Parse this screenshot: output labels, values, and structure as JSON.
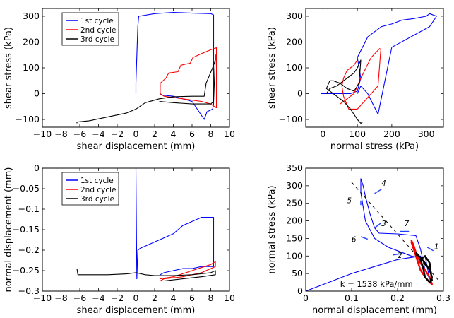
{
  "chart_data": [
    {
      "type": "line",
      "xlabel": "shear displacement (mm)",
      "ylabel": "shear stress (kPa)",
      "xlim": [
        -10,
        10
      ],
      "ylim": [
        -130,
        330
      ],
      "xticks": [
        -10,
        -8,
        -6,
        -4,
        -2,
        0,
        2,
        4,
        6,
        8,
        10
      ],
      "xtick_labels": [
        "−10",
        "−8",
        "−6",
        "−4",
        "−2",
        "0",
        "2",
        "4",
        "6",
        "8",
        "10"
      ],
      "yticks": [
        -100,
        0,
        100,
        200,
        300
      ],
      "ytick_labels": [
        "−100",
        "0",
        "100",
        "200",
        "300"
      ],
      "legend": "top-left",
      "series": [
        {
          "name": "1st cycle",
          "color": "#0000ff",
          "x": [
            0,
            0,
            0.2,
            0.3,
            2,
            4,
            6,
            8,
            8.3,
            8.3,
            8.2,
            7.6,
            7.3,
            6,
            4,
            2.6,
            2.6
          ],
          "y": [
            0,
            40,
            260,
            300,
            310,
            315,
            312,
            310,
            305,
            -40,
            -60,
            -70,
            -100,
            -30,
            -10,
            -5,
            0
          ]
        },
        {
          "name": "2nd cycle",
          "color": "#ff0000",
          "x": [
            2.6,
            2.6,
            3.2,
            3.5,
            4.5,
            4.8,
            5.8,
            6.1,
            7,
            8,
            8.6,
            8.6,
            8.2,
            8,
            7,
            6,
            5,
            4,
            3,
            2.6
          ],
          "y": [
            0,
            40,
            60,
            80,
            85,
            110,
            118,
            140,
            155,
            170,
            178,
            -55,
            -45,
            -40,
            -30,
            -25,
            -20,
            -15,
            -10,
            0
          ]
        },
        {
          "name": "3rd cycle",
          "color": "#000000",
          "x": [
            -6.3,
            -6.3,
            -5,
            -3,
            -1,
            0,
            1,
            2.5,
            4,
            6,
            7.3,
            7.5,
            8.2,
            8.5,
            8.5,
            8.3,
            8,
            6,
            4,
            2.5
          ],
          "y": [
            -115,
            -110,
            -105,
            -90,
            -75,
            -60,
            -35,
            -20,
            -12,
            -10,
            -10,
            40,
            100,
            130,
            150,
            -30,
            -40,
            -40,
            -35,
            -30
          ]
        }
      ]
    },
    {
      "type": "line",
      "xlabel": "normal stress (kPa)",
      "ylabel": "shear stress (kPa)",
      "xlim": [
        -50,
        350
      ],
      "ylim": [
        -130,
        330
      ],
      "xticks": [
        0,
        100,
        200,
        300
      ],
      "xtick_labels": [
        "0",
        "100",
        "200",
        "300"
      ],
      "yticks": [
        -100,
        0,
        100,
        200,
        300
      ],
      "ytick_labels": [
        "−100",
        "0",
        "100",
        "200",
        "300"
      ],
      "series": [
        {
          "name": "1st cycle",
          "color": "#0000ff",
          "x": [
            -5,
            40,
            80,
            100,
            110,
            100,
            130,
            170,
            200,
            230,
            260,
            300,
            310,
            330,
            320,
            310,
            200,
            160,
            130,
            110,
            100
          ],
          "y": [
            0,
            0,
            0,
            10,
            60,
            140,
            220,
            260,
            270,
            285,
            290,
            300,
            310,
            300,
            280,
            260,
            180,
            -80,
            0,
            30,
            0
          ]
        },
        {
          "name": "2nd cycle",
          "color": "#ff0000",
          "x": [
            50,
            70,
            90,
            110,
            140,
            165,
            168,
            160,
            130,
            100,
            75,
            60,
            55,
            60,
            70,
            80,
            90,
            100
          ],
          "y": [
            -40,
            -20,
            0,
            60,
            140,
            175,
            170,
            30,
            -15,
            -60,
            -60,
            -10,
            30,
            60,
            90,
            100,
            110,
            130
          ]
        },
        {
          "name": "3rd cycle",
          "color": "#000000",
          "x": [
            10,
            20,
            40,
            60,
            80,
            90,
            100,
            110,
            105,
            90,
            70,
            50,
            30,
            20,
            10,
            60,
            80,
            90,
            100,
            110,
            115
          ],
          "y": [
            0,
            20,
            30,
            50,
            70,
            80,
            100,
            130,
            40,
            10,
            20,
            40,
            50,
            50,
            20,
            -30,
            -60,
            -80,
            -100,
            -115,
            -110
          ]
        }
      ]
    },
    {
      "type": "line",
      "xlabel": "shear displacement (mm)",
      "ylabel": "normal displacement (mm)",
      "xlim": [
        -10,
        10
      ],
      "ylim": [
        -0.3,
        0
      ],
      "xticks": [
        -10,
        -8,
        -6,
        -4,
        -2,
        0,
        2,
        4,
        6,
        8,
        10
      ],
      "xtick_labels": [
        "−10",
        "−8",
        "−6",
        "−4",
        "−2",
        "0",
        "2",
        "4",
        "6",
        "8",
        "10"
      ],
      "yticks": [
        -0.3,
        -0.25,
        -0.2,
        -0.15,
        -0.1,
        -0.05,
        0
      ],
      "ytick_labels": [
        "−0.3",
        "−0.25",
        "−0.2",
        "−0.15",
        "−0.1",
        "−0.05",
        "0"
      ],
      "legend": "top-left",
      "series": [
        {
          "name": "1st cycle",
          "color": "#0000ff",
          "x": [
            0,
            0.1,
            0.2,
            0.5,
            1,
            2,
            3,
            4,
            5,
            6,
            7,
            8,
            8.3,
            8.3,
            7,
            6,
            5,
            4,
            3,
            2.6
          ],
          "y": [
            0,
            -0.27,
            -0.2,
            -0.195,
            -0.19,
            -0.18,
            -0.17,
            -0.16,
            -0.14,
            -0.13,
            -0.12,
            -0.12,
            -0.12,
            -0.24,
            -0.24,
            -0.245,
            -0.245,
            -0.25,
            -0.255,
            -0.26
          ]
        },
        {
          "name": "2nd cycle",
          "color": "#ff0000",
          "x": [
            2.6,
            4,
            6,
            8,
            8.5,
            8.5,
            7,
            5,
            3,
            2.6
          ],
          "y": [
            -0.27,
            -0.265,
            -0.25,
            -0.235,
            -0.228,
            -0.24,
            -0.255,
            -0.265,
            -0.27,
            -0.275
          ]
        },
        {
          "name": "3rd cycle",
          "color": "#000000",
          "x": [
            -6.3,
            -6.2,
            -5,
            -3,
            -1,
            0,
            1,
            2,
            4,
            6,
            8,
            8.5,
            8.5,
            7,
            5,
            3,
            2.6
          ],
          "y": [
            -0.245,
            -0.26,
            -0.26,
            -0.26,
            -0.258,
            -0.255,
            -0.26,
            -0.262,
            -0.262,
            -0.26,
            -0.255,
            -0.25,
            -0.26,
            -0.265,
            -0.27,
            -0.275,
            -0.275
          ]
        }
      ]
    },
    {
      "type": "line",
      "xlabel": "normal displacement (mm)",
      "ylabel": "normal stress (kPa)",
      "xlim": [
        0,
        0.3
      ],
      "ylim": [
        0,
        350
      ],
      "xticks": [
        0,
        0.1,
        0.2,
        0.3
      ],
      "xtick_labels": [
        "0",
        "0.1",
        "0.2",
        "0.3"
      ],
      "yticks": [
        0,
        50,
        100,
        150,
        200,
        250,
        300,
        350
      ],
      "ytick_labels": [
        "0",
        "50",
        "100",
        "150",
        "200",
        "250",
        "300",
        "350"
      ],
      "annotation": "k = 1538 kPa/mm",
      "fit_line": {
        "x": [
          0.1,
          0.29
        ],
        "y": [
          310,
          30
        ]
      },
      "labels": [
        "1",
        "2",
        "3",
        "4",
        "5",
        "6",
        "7"
      ],
      "series": [
        {
          "name": "1st cycle",
          "color": "#0000ff",
          "x": [
            0,
            0.05,
            0.1,
            0.15,
            0.2,
            0.25,
            0.26,
            0.25,
            0.23,
            0.21,
            0.18,
            0.15,
            0.14,
            0.13,
            0.125,
            0.12,
            0.12,
            0.125,
            0.13,
            0.14,
            0.15,
            0.16,
            0.2,
            0.24,
            0.25,
            0.26,
            0.27,
            0.26
          ],
          "y": [
            0,
            25,
            50,
            70,
            90,
            100,
            80,
            95,
            100,
            110,
            125,
            150,
            175,
            200,
            240,
            280,
            320,
            300,
            270,
            220,
            180,
            165,
            163,
            158,
            120,
            60,
            35,
            100
          ]
        },
        {
          "name": "2nd cycle",
          "color": "#ff0000",
          "x": [
            0.23,
            0.235,
            0.24,
            0.245,
            0.25,
            0.26,
            0.27,
            0.275,
            0.27,
            0.26,
            0.25,
            0.24,
            0.235,
            0.23
          ],
          "y": [
            140,
            120,
            100,
            80,
            60,
            40,
            25,
            20,
            40,
            60,
            80,
            110,
            130,
            145
          ]
        },
        {
          "name": "3rd cycle",
          "color": "#000000",
          "x": [
            0.24,
            0.25,
            0.26,
            0.27,
            0.275,
            0.27,
            0.26,
            0.255,
            0.25,
            0.26,
            0.27,
            0.275
          ],
          "y": [
            110,
            95,
            80,
            60,
            40,
            25,
            40,
            70,
            90,
            100,
            80,
            30
          ]
        }
      ]
    }
  ]
}
